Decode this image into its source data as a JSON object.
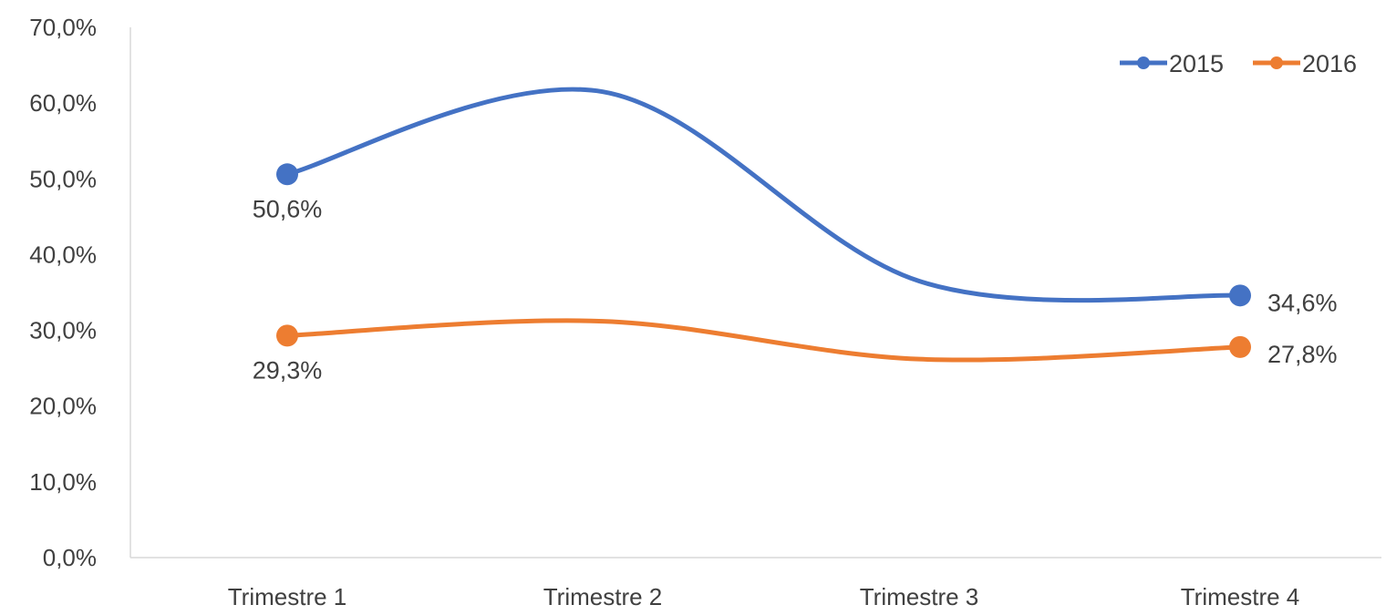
{
  "chart_data": {
    "type": "line",
    "title": "",
    "xlabel": "",
    "ylabel": "",
    "categories": [
      "Trimestre 1",
      "Trimestre 2",
      "Trimestre 3",
      "Trimestre 4"
    ],
    "ylim": [
      0,
      70
    ],
    "yticks": [
      0,
      10,
      20,
      30,
      40,
      50,
      60,
      70
    ],
    "ytick_labels": [
      "0,0%",
      "10,0%",
      "20,0%",
      "30,0%",
      "40,0%",
      "50,0%",
      "60,0%",
      "70,0%"
    ],
    "smooth": true,
    "grid": false,
    "legend_position": "top-right",
    "series": [
      {
        "name": "2015",
        "color": "#4472C4",
        "values": [
          50.6,
          61.5,
          36.5,
          34.6
        ],
        "labels": [
          "50,6%",
          null,
          null,
          "34,6%"
        ]
      },
      {
        "name": "2016",
        "color": "#ED7D31",
        "values": [
          29.3,
          31.2,
          26.2,
          27.8
        ],
        "labels": [
          "29,3%",
          null,
          null,
          "27,8%"
        ]
      }
    ]
  }
}
